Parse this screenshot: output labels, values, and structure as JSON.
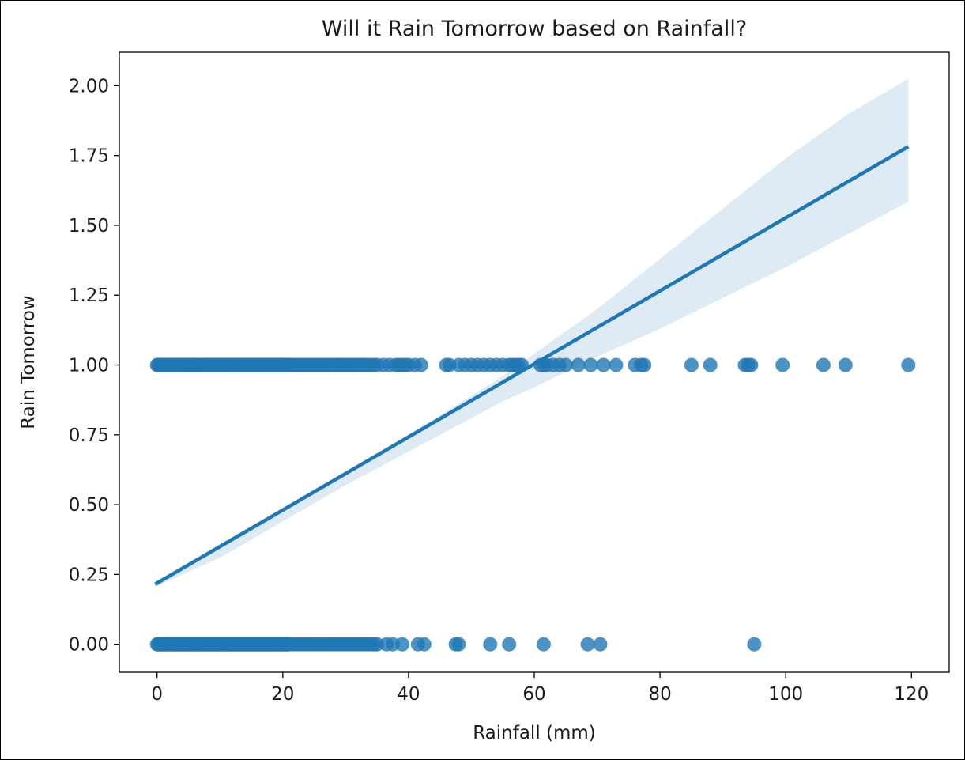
{
  "chart_data": {
    "type": "scatter",
    "title": "Will it Rain Tomorrow based on Rainfall?",
    "xlabel": "Rainfall (mm)",
    "ylabel": "Rain Tomorrow",
    "xlim": [
      -6,
      126
    ],
    "ylim": [
      -0.1,
      2.12
    ],
    "x_ticks": [
      0,
      20,
      40,
      60,
      80,
      100,
      120
    ],
    "y_ticks": [
      0.0,
      0.25,
      0.5,
      0.75,
      1.0,
      1.25,
      1.5,
      1.75,
      2.0
    ],
    "y_tick_labels": [
      "0.00",
      "0.25",
      "0.50",
      "0.75",
      "1.00",
      "1.25",
      "1.50",
      "1.75",
      "2.00"
    ],
    "grid": false,
    "legend": "none",
    "colors": {
      "points": "#1f77b4",
      "line": "#1f77b4",
      "band": "#1f77b4"
    },
    "series": [
      {
        "points_y1": [
          0,
          0.2,
          0.4,
          0.6,
          0.8,
          1,
          1.2,
          1.4,
          1.6,
          1.8,
          2,
          2.2,
          2.4,
          2.6,
          2.8,
          3,
          3.2,
          3.4,
          3.6,
          3.8,
          4,
          4.2,
          4.4,
          4.6,
          4.8,
          5,
          5.2,
          5.4,
          5.6,
          5.8,
          6,
          6.2,
          6.4,
          6.6,
          6.8,
          7,
          7.2,
          7.4,
          7.6,
          7.8,
          8,
          8.2,
          8.4,
          8.6,
          8.8,
          9,
          9.2,
          9.4,
          9.6,
          9.8,
          10,
          10.2,
          10.4,
          10.6,
          10.8,
          11,
          11.2,
          11.4,
          11.6,
          11.8,
          12,
          12.2,
          12.4,
          12.6,
          12.8,
          13,
          13.2,
          13.4,
          13.6,
          13.8,
          14,
          14.2,
          14.4,
          14.6,
          14.8,
          15,
          15.2,
          15.4,
          15.6,
          15.8,
          16,
          16.2,
          16.4,
          16.6,
          16.8,
          17,
          17.2,
          17.4,
          17.6,
          17.8,
          18,
          18.2,
          18.4,
          18.6,
          18.8,
          19,
          19.2,
          19.4,
          19.6,
          19.8,
          20,
          20.2,
          20.4,
          20.6,
          20.8,
          21,
          21.4,
          21.8,
          22.2,
          22.6,
          23,
          23.4,
          23.8,
          24.2,
          24.6,
          25,
          25.4,
          25.8,
          26.2,
          26.6,
          27,
          27.4,
          27.8,
          28.2,
          28.6,
          29,
          29.4,
          29.8,
          30.2,
          30.6,
          31,
          31.4,
          31.8,
          32.2,
          32.6,
          33,
          33.5,
          34,
          34.5,
          35,
          36,
          37,
          38,
          38.5,
          39,
          39.5,
          40,
          41,
          42,
          46,
          46.5,
          48,
          49,
          50,
          51,
          52,
          53,
          54,
          55,
          56,
          56.5,
          57,
          57.5,
          58,
          61,
          61.5,
          62,
          63,
          64,
          65,
          67,
          69,
          71,
          73,
          76,
          77,
          77.5,
          85,
          88,
          93.5,
          94,
          94.5,
          99.5,
          106,
          109.5,
          119.5
        ],
        "points_y0": [
          0,
          0.2,
          0.4,
          0.6,
          0.8,
          1,
          1.2,
          1.4,
          1.6,
          1.8,
          2,
          2.2,
          2.4,
          2.6,
          2.8,
          3,
          3.2,
          3.4,
          3.6,
          3.8,
          4,
          4.2,
          4.4,
          4.6,
          4.8,
          5,
          5.2,
          5.4,
          5.6,
          5.8,
          6,
          6.2,
          6.4,
          6.6,
          6.8,
          7,
          7.2,
          7.4,
          7.6,
          7.8,
          8,
          8.2,
          8.4,
          8.6,
          8.8,
          9,
          9.2,
          9.4,
          9.6,
          9.8,
          10,
          10.2,
          10.4,
          10.6,
          10.8,
          11,
          11.2,
          11.4,
          11.6,
          11.8,
          12,
          12.2,
          12.4,
          12.6,
          12.8,
          13,
          13.2,
          13.4,
          13.6,
          13.8,
          14,
          14.2,
          14.4,
          14.6,
          14.8,
          15,
          15.2,
          15.4,
          15.6,
          15.8,
          16,
          16.2,
          16.4,
          16.6,
          16.8,
          17,
          17.2,
          17.4,
          17.6,
          17.8,
          18,
          18.2,
          18.4,
          18.6,
          18.8,
          19,
          19.2,
          19.4,
          19.6,
          19.8,
          20,
          20.2,
          20.4,
          20.6,
          20.8,
          21,
          21.5,
          22,
          22.5,
          23,
          23.5,
          24,
          24.5,
          25,
          25.5,
          26,
          26.5,
          27,
          27.5,
          28,
          28.5,
          29,
          29.5,
          30,
          30.5,
          31,
          31.5,
          32,
          32.5,
          33,
          33.5,
          34,
          34.5,
          35,
          36.5,
          37.5,
          39,
          41.5,
          42.5,
          47.5,
          48,
          53,
          56,
          61.5,
          68.5,
          70.5,
          95
        ]
      }
    ],
    "regression": {
      "x": [
        -0.3,
        119.5
      ],
      "y": [
        0.215,
        1.782
      ]
    },
    "confidence_band": {
      "x": [
        -0.3,
        10,
        20,
        30,
        40,
        50,
        55,
        60,
        70,
        80,
        90,
        100,
        110,
        119.5
      ],
      "lower": [
        0.205,
        0.31,
        0.44,
        0.57,
        0.69,
        0.81,
        0.87,
        0.92,
        1.03,
        1.13,
        1.24,
        1.35,
        1.47,
        1.585
      ],
      "upper": [
        0.225,
        0.35,
        0.48,
        0.61,
        0.75,
        0.89,
        0.96,
        1.04,
        1.2,
        1.38,
        1.56,
        1.74,
        1.9,
        2.025
      ]
    }
  }
}
